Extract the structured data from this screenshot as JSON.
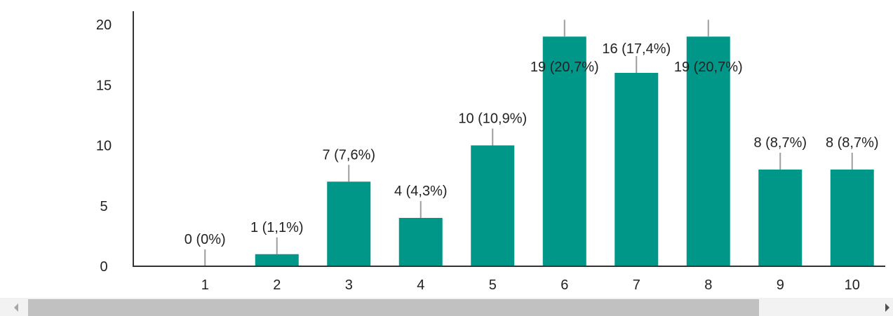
{
  "chart_data": {
    "type": "bar",
    "title": "",
    "xlabel": "",
    "ylabel": "",
    "categories": [
      "1",
      "2",
      "3",
      "4",
      "5",
      "6",
      "7",
      "8",
      "9",
      "10"
    ],
    "values": [
      0,
      1,
      7,
      4,
      10,
      19,
      16,
      19,
      8,
      8
    ],
    "data_labels": [
      "0 (0%)",
      "1 (1,1%)",
      "7 (7,6%)",
      "4 (4,3%)",
      "10 (10,9%)",
      "19 (20,7%)",
      "16 (17,4%)",
      "19 (20,7%)",
      "8 (8,7%)",
      "8 (8,7%)"
    ],
    "y_ticks": [
      "0",
      "5",
      "10",
      "15",
      "20"
    ],
    "ylim": [
      0,
      20
    ],
    "grid": false,
    "legend": "none",
    "bar_color": "#009688",
    "leader_line_color": "#9e9e9e",
    "axis_color": "#333333"
  },
  "scrollbar": {
    "left_arrow_icon": "triangle-left",
    "right_arrow_icon": "triangle-right"
  }
}
